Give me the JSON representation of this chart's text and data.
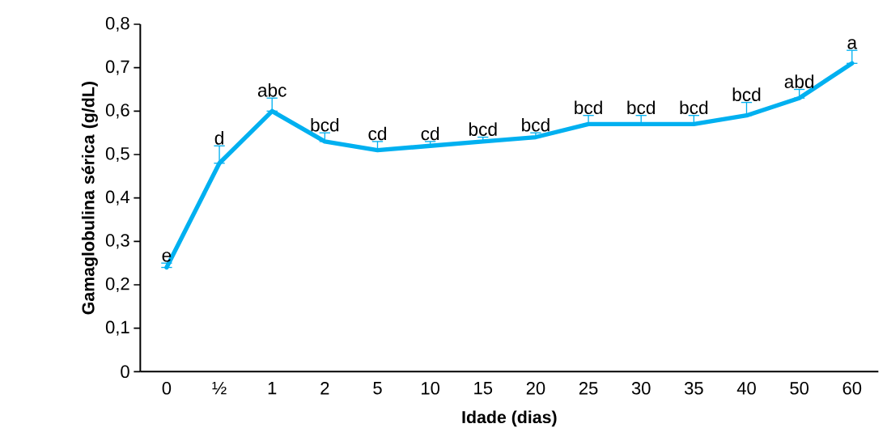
{
  "chart_data": {
    "type": "line",
    "xlabel": "Idade (dias)",
    "ylabel": "Gamaglobulina sérica (g/dL)",
    "categories": [
      "0",
      "½",
      "1",
      "2",
      "5",
      "10",
      "15",
      "20",
      "25",
      "30",
      "35",
      "40",
      "50",
      "60"
    ],
    "values": [
      0.24,
      0.48,
      0.6,
      0.53,
      0.51,
      0.52,
      0.53,
      0.54,
      0.57,
      0.57,
      0.57,
      0.59,
      0.63,
      0.71
    ],
    "errors": [
      [
        0.24,
        0.25
      ],
      [
        0.48,
        0.52
      ],
      [
        0.6,
        0.63
      ],
      [
        0.53,
        0.55
      ],
      [
        0.51,
        0.53
      ],
      [
        0.52,
        0.53
      ],
      [
        0.53,
        0.54
      ],
      [
        0.54,
        0.55
      ],
      [
        0.57,
        0.59
      ],
      [
        0.57,
        0.59
      ],
      [
        0.57,
        0.59
      ],
      [
        0.59,
        0.62
      ],
      [
        0.63,
        0.65
      ],
      [
        0.71,
        0.74
      ]
    ],
    "value_labels": [
      "e",
      "d",
      "abc",
      "bcd",
      "cd",
      "cd",
      "bcd",
      "bcd",
      "bcd",
      "bcd",
      "bcd",
      "bcd",
      "abd",
      "a"
    ],
    "color": "#00b0f0",
    "marker": "none",
    "line_style": "solid",
    "ylim": [
      0,
      0.8
    ],
    "yticks": [
      0,
      {
        "value": 0.1,
        "label": "0,1"
      },
      {
        "value": 0.2,
        "label": "0,2"
      },
      {
        "value": 0.3,
        "label": "0,3"
      },
      {
        "value": 0.4,
        "label": "0,4"
      },
      {
        "value": 0.5,
        "label": "0,5"
      },
      {
        "value": 0.6,
        "label": "0,6"
      },
      {
        "value": 0.7,
        "label": "0,7"
      },
      {
        "value": 0.8,
        "label": "0,8"
      }
    ],
    "grid": false
  }
}
